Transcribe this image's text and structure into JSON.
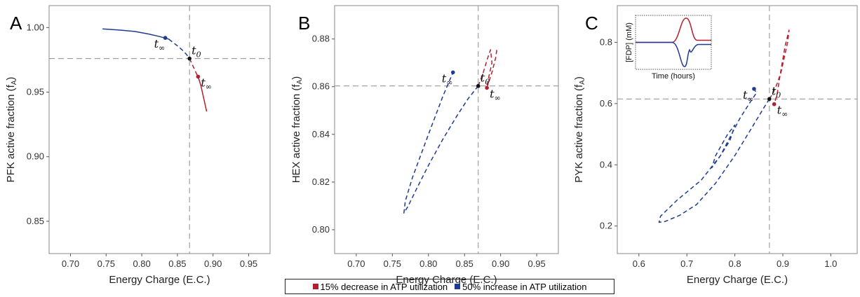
{
  "colors": {
    "red": "#b21f2d",
    "blue": "#1f3a93",
    "ref": "#999999"
  },
  "legend": {
    "red_label": "15% decrease in ATP utilization",
    "blue_label": "50% increase in ATP utilization"
  },
  "chart_data": [
    {
      "type": "line",
      "panel": "A",
      "xlabel": "Energy Charge (E.C.)",
      "ylabel": "PFK active fraction (f",
      "ylabel_sub": "A",
      "xlim": [
        0.67,
        0.98
      ],
      "ylim": [
        0.825,
        1.017
      ],
      "xticks": [
        "0.70",
        "0.75",
        "0.80",
        "0.85",
        "0.90",
        "0.95"
      ],
      "yticks": [
        "0.85",
        "0.90",
        "0.95",
        "1.00"
      ],
      "ref": {
        "x": 0.867,
        "y": 0.976
      },
      "t0": {
        "label": "t",
        "sub": "0",
        "x": 0.867,
        "y": 0.976
      },
      "blue_end": {
        "label": "t",
        "sub": "∞",
        "x": 0.833,
        "y": 0.992
      },
      "red_end": {
        "label": "t",
        "sub": "∞",
        "x": 0.879,
        "y": 0.962
      },
      "series": [
        {
          "name": "blue_solid",
          "color": "blue",
          "dash": false,
          "x": [
            0.745,
            0.77,
            0.79,
            0.81,
            0.825,
            0.838
          ],
          "y": [
            0.999,
            0.998,
            0.997,
            0.995,
            0.993,
            0.991
          ]
        },
        {
          "name": "blue_dashed",
          "color": "blue",
          "dash": true,
          "x": [
            0.838,
            0.845,
            0.852,
            0.858,
            0.863,
            0.867
          ],
          "y": [
            0.991,
            0.988,
            0.985,
            0.982,
            0.979,
            0.976
          ]
        },
        {
          "name": "red_dashed",
          "color": "red",
          "dash": true,
          "x": [
            0.867,
            0.872,
            0.877,
            0.879
          ],
          "y": [
            0.976,
            0.97,
            0.964,
            0.962
          ]
        },
        {
          "name": "red_solid",
          "color": "red",
          "dash": false,
          "x": [
            0.879,
            0.883,
            0.887,
            0.891
          ],
          "y": [
            0.962,
            0.955,
            0.945,
            0.935
          ]
        }
      ]
    },
    {
      "type": "line",
      "panel": "B",
      "xlabel": "Energy Charge (E.C.)",
      "ylabel": "HEX active fraction (f",
      "ylabel_sub": "A",
      "xlim": [
        0.67,
        0.98
      ],
      "ylim": [
        0.79,
        0.894
      ],
      "xticks": [
        "0.70",
        "0.75",
        "0.80",
        "0.85",
        "0.90",
        "0.95"
      ],
      "yticks": [
        "0.80",
        "0.82",
        "0.84",
        "0.86",
        "0.88"
      ],
      "ref": {
        "x": 0.869,
        "y": 0.8603
      },
      "t0": {
        "label": "t",
        "sub": "0",
        "x": 0.869,
        "y": 0.8603
      },
      "blue_end": {
        "label": "t",
        "sub": "∞",
        "x": 0.834,
        "y": 0.866
      },
      "red_end": {
        "label": "t",
        "sub": "∞",
        "x": 0.881,
        "y": 0.8595
      },
      "series": [
        {
          "name": "blue_dashed",
          "color": "blue",
          "dash": true,
          "x": [
            0.869,
            0.855,
            0.84,
            0.82,
            0.8,
            0.785,
            0.772,
            0.766,
            0.768,
            0.778,
            0.8,
            0.82,
            0.834
          ],
          "y": [
            0.8603,
            0.855,
            0.848,
            0.838,
            0.827,
            0.818,
            0.81,
            0.807,
            0.812,
            0.822,
            0.84,
            0.856,
            0.866
          ]
        },
        {
          "name": "red_dashed",
          "color": "red",
          "dash": true,
          "x": [
            0.869,
            0.876,
            0.882,
            0.886,
            0.888,
            0.882,
            0.881
          ],
          "y": [
            0.8603,
            0.866,
            0.872,
            0.8755,
            0.87,
            0.862,
            0.8595
          ]
        },
        {
          "name": "red_dashed_right",
          "color": "red",
          "dash": true,
          "x": [
            0.881,
            0.888,
            0.893,
            0.895
          ],
          "y": [
            0.8595,
            0.866,
            0.872,
            0.876
          ]
        }
      ]
    },
    {
      "type": "line",
      "panel": "C",
      "xlabel": "Energy Charge (E.C.)",
      "ylabel": "PYK active fraction (f",
      "ylabel_sub": "A",
      "xlim": [
        0.555,
        1.055
      ],
      "ylim": [
        0.11,
        0.92
      ],
      "xticks": [
        "0.6",
        "0.7",
        "0.8",
        "0.9",
        "1.0"
      ],
      "yticks": [
        "0.2",
        "0.4",
        "0.6",
        "0.8"
      ],
      "ref": {
        "x": 0.872,
        "y": 0.615
      },
      "t0": {
        "label": "t",
        "sub": "0",
        "x": 0.872,
        "y": 0.615
      },
      "blue_end": {
        "label": "t",
        "sub": "∞",
        "x": 0.84,
        "y": 0.648
      },
      "red_end": {
        "label": "t",
        "sub": "∞",
        "x": 0.882,
        "y": 0.598
      },
      "series": [
        {
          "name": "blue_dashed",
          "color": "blue",
          "dash": true,
          "x": [
            0.872,
            0.86,
            0.835,
            0.8,
            0.76,
            0.72,
            0.685,
            0.655,
            0.642,
            0.645,
            0.68,
            0.73,
            0.77,
            0.79,
            0.8,
            0.785,
            0.76,
            0.752,
            0.77,
            0.79,
            0.81,
            0.83,
            0.845,
            0.84
          ],
          "y": [
            0.615,
            0.585,
            0.52,
            0.43,
            0.34,
            0.27,
            0.235,
            0.215,
            0.212,
            0.232,
            0.285,
            0.35,
            0.43,
            0.48,
            0.53,
            0.5,
            0.43,
            0.39,
            0.43,
            0.49,
            0.55,
            0.6,
            0.635,
            0.648
          ]
        },
        {
          "name": "red_dashed",
          "color": "red",
          "dash": true,
          "x": [
            0.872,
            0.88,
            0.888,
            0.896,
            0.903,
            0.91,
            0.913,
            0.905,
            0.895,
            0.888,
            0.882
          ],
          "y": [
            0.615,
            0.635,
            0.665,
            0.7,
            0.75,
            0.8,
            0.84,
            0.79,
            0.7,
            0.63,
            0.598
          ]
        }
      ],
      "inset": {
        "ylabel": "[FDP] (mM)",
        "xlabel": "Time (hours)",
        "baseline": 0.5,
        "red_peak": 0.95,
        "blue_trough": 0.05
      }
    }
  ],
  "panels": {
    "a": "A",
    "b": "B",
    "c": "C"
  }
}
